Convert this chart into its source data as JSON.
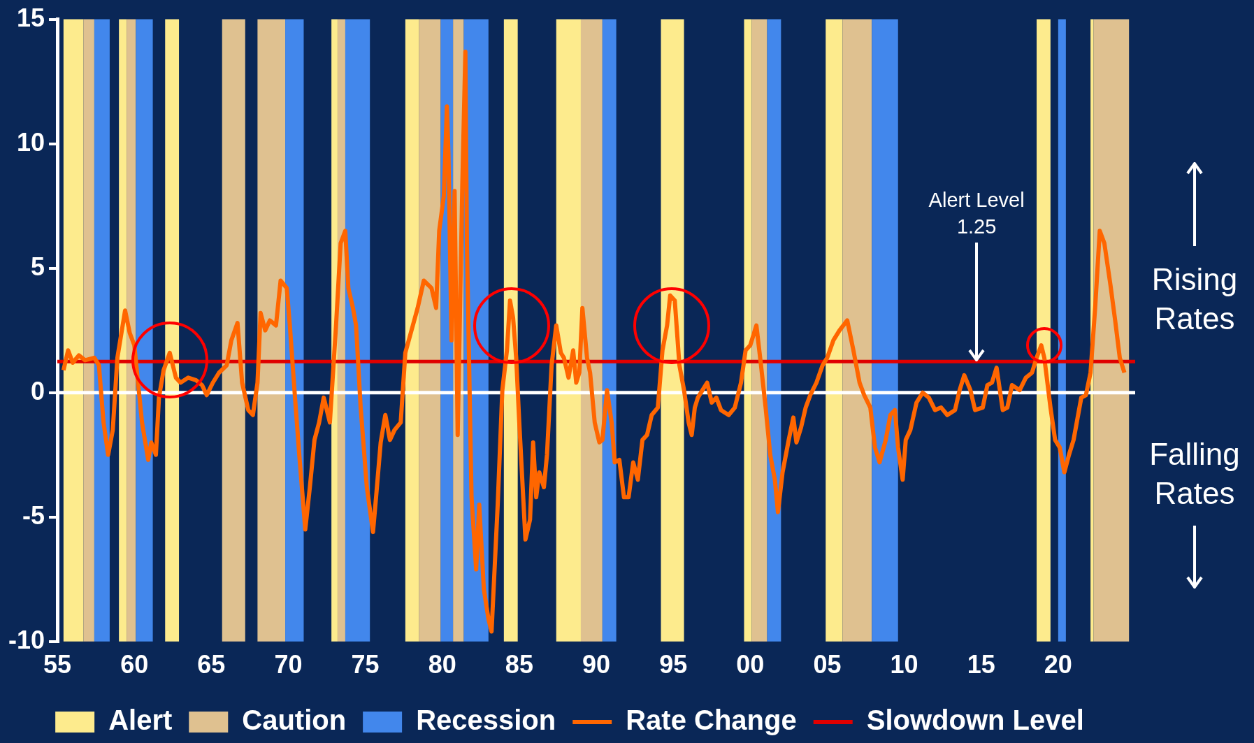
{
  "chart_data": {
    "type": "line",
    "xlim": [
      1955,
      2025
    ],
    "ylim": [
      -10,
      15
    ],
    "xticks": [
      {
        "value": 1955,
        "label": "55"
      },
      {
        "value": 1960,
        "label": "60"
      },
      {
        "value": 1965,
        "label": "65"
      },
      {
        "value": 1970,
        "label": "70"
      },
      {
        "value": 1975,
        "label": "75"
      },
      {
        "value": 1980,
        "label": "80"
      },
      {
        "value": 1985,
        "label": "85"
      },
      {
        "value": 1990,
        "label": "90"
      },
      {
        "value": 1995,
        "label": "95"
      },
      {
        "value": 2000,
        "label": "00"
      },
      {
        "value": 2005,
        "label": "05"
      },
      {
        "value": 2010,
        "label": "10"
      },
      {
        "value": 2015,
        "label": "15"
      },
      {
        "value": 2020,
        "label": "20"
      }
    ],
    "yticks": [
      -10,
      -5,
      0,
      5,
      10,
      15
    ],
    "legend": "bottom",
    "series": [
      {
        "name": "Rate Change",
        "color": "#ff6600",
        "x": [
          1955.4,
          1955.7,
          1956.0,
          1956.4,
          1956.8,
          1957.4,
          1957.7,
          1958.0,
          1958.3,
          1958.6,
          1958.9,
          1959.4,
          1959.7,
          1960.0,
          1960.5,
          1960.9,
          1961.1,
          1961.4,
          1961.6,
          1961.9,
          1962.3,
          1962.7,
          1963.0,
          1963.5,
          1964.0,
          1964.4,
          1964.7,
          1965.1,
          1965.5,
          1966.0,
          1966.3,
          1966.7,
          1967.0,
          1967.4,
          1967.7,
          1968.0,
          1968.2,
          1968.5,
          1968.8,
          1969.2,
          1969.5,
          1969.9,
          1970.1,
          1970.4,
          1970.7,
          1971.1,
          1971.4,
          1971.7,
          1972.0,
          1972.3,
          1972.7,
          1973.1,
          1973.4,
          1973.7,
          1973.9,
          1974.2,
          1974.4,
          1974.7,
          1975.1,
          1975.5,
          1975.7,
          1976.0,
          1976.3,
          1976.6,
          1976.9,
          1977.3,
          1977.6,
          1978.0,
          1978.4,
          1978.8,
          1979.3,
          1979.6,
          1979.8,
          1980.1,
          1980.3,
          1980.4,
          1980.6,
          1980.8,
          1981.0,
          1981.3,
          1981.5,
          1981.6,
          1981.9,
          1982.2,
          1982.4,
          1982.7,
          1983.0,
          1983.2,
          1983.6,
          1983.9,
          1984.2,
          1984.4,
          1984.6,
          1984.8,
          1985.0,
          1985.4,
          1985.7,
          1985.9,
          1986.1,
          1986.3,
          1986.6,
          1986.8,
          1987.1,
          1987.4,
          1987.7,
          1987.9,
          1988.2,
          1988.5,
          1988.7,
          1988.9,
          1989.1,
          1989.4,
          1989.6,
          1989.9,
          1990.2,
          1990.4,
          1990.7,
          1991.0,
          1991.2,
          1991.5,
          1991.8,
          1992.1,
          1992.4,
          1992.7,
          1993.0,
          1993.3,
          1993.6,
          1994.0,
          1994.3,
          1994.6,
          1994.8,
          1995.1,
          1995.4,
          1995.7,
          1996.0,
          1996.2,
          1996.4,
          1996.6,
          1996.9,
          1997.2,
          1997.5,
          1997.8,
          1998.1,
          1998.6,
          1999.0,
          1999.4,
          1999.7,
          2000.0,
          2000.4,
          2000.7,
          2001.0,
          2001.3,
          2001.6,
          2001.8,
          2002.1,
          2002.5,
          2002.8,
          2003.0,
          2003.3,
          2003.6,
          2003.9,
          2004.3,
          2004.7,
          2005.0,
          2005.4,
          2005.8,
          2006.3,
          2006.7,
          2007.1,
          2007.4,
          2007.8,
          2008.1,
          2008.4,
          2008.8,
          2009.1,
          2009.4,
          2009.6,
          2009.9,
          2010.1,
          2010.4,
          2010.8,
          2011.2,
          2011.6,
          2012.0,
          2012.4,
          2012.8,
          2013.3,
          2013.6,
          2013.9,
          2014.3,
          2014.6,
          2015.1,
          2015.4,
          2015.7,
          2016.0,
          2016.4,
          2016.7,
          2017.0,
          2017.5,
          2017.9,
          2018.3,
          2018.6,
          2018.9,
          2019.1,
          2019.5,
          2019.8,
          2020.1,
          2020.4,
          2020.7,
          2021.0,
          2021.5,
          2021.8,
          2022.1,
          2022.4,
          2022.7,
          2023.0,
          2023.4,
          2023.7,
          2024.0,
          2024.3
        ],
        "values": [
          0.9,
          1.7,
          1.2,
          1.5,
          1.3,
          1.4,
          1.1,
          -1.2,
          -2.5,
          -1.5,
          1.4,
          3.3,
          2.4,
          1.9,
          -1.2,
          -2.7,
          -2.0,
          -2.5,
          -0.2,
          0.9,
          1.6,
          0.6,
          0.4,
          0.6,
          0.5,
          0.3,
          -0.1,
          0.4,
          0.8,
          1.1,
          2.1,
          2.8,
          0.4,
          -0.7,
          -0.9,
          0.4,
          3.2,
          2.5,
          2.9,
          2.7,
          4.5,
          4.2,
          2.7,
          0.1,
          -2.4,
          -5.5,
          -3.8,
          -1.9,
          -1.2,
          -0.2,
          -1.2,
          2.7,
          6.0,
          6.5,
          4.2,
          3.4,
          2.7,
          -0.6,
          -3.8,
          -5.6,
          -4.2,
          -2.0,
          -0.9,
          -1.9,
          -1.5,
          -1.2,
          1.6,
          2.5,
          3.4,
          4.5,
          4.2,
          3.4,
          6.5,
          7.9,
          11.5,
          9.6,
          2.1,
          8.1,
          -1.7,
          8.3,
          13.7,
          6.0,
          -4.2,
          -7.1,
          -4.5,
          -7.9,
          -9.1,
          -9.6,
          -4.5,
          0.1,
          1.7,
          3.7,
          3.0,
          1.4,
          -1.2,
          -5.9,
          -5.1,
          -2.0,
          -4.2,
          -3.2,
          -3.8,
          -2.5,
          1.1,
          2.7,
          1.6,
          1.4,
          0.6,
          1.7,
          0.4,
          0.8,
          3.4,
          1.4,
          0.8,
          -1.2,
          -2.0,
          -1.9,
          0.1,
          -1.2,
          -2.8,
          -2.7,
          -4.2,
          -4.2,
          -2.8,
          -3.5,
          -1.9,
          -1.7,
          -0.9,
          -0.6,
          1.7,
          2.7,
          3.9,
          3.7,
          1.1,
          0.1,
          -1.2,
          -1.7,
          -0.6,
          -0.2,
          0.1,
          0.4,
          -0.4,
          -0.2,
          -0.7,
          -0.9,
          -0.6,
          0.4,
          1.7,
          1.9,
          2.7,
          1.1,
          -0.6,
          -2.5,
          -3.5,
          -4.8,
          -3.2,
          -1.9,
          -1.0,
          -2.0,
          -1.4,
          -0.6,
          -0.1,
          0.4,
          1.1,
          1.4,
          2.1,
          2.5,
          2.9,
          1.7,
          0.4,
          -0.1,
          -0.6,
          -2.2,
          -2.8,
          -1.9,
          -0.9,
          -0.7,
          -2.2,
          -3.5,
          -1.9,
          -1.5,
          -0.4,
          0,
          -0.2,
          -0.7,
          -0.6,
          -0.9,
          -0.7,
          0.1,
          0.7,
          0.1,
          -0.7,
          -0.6,
          0.3,
          0.4,
          1.0,
          -0.7,
          -0.6,
          0.3,
          0.1,
          0.6,
          0.8,
          1.4,
          1.9,
          1.4,
          -0.6,
          -1.9,
          -2.2,
          -3.2,
          -2.5,
          -1.9,
          -0.2,
          -0.1,
          0.8,
          3.4,
          6.5,
          6.0,
          4.3,
          2.9,
          1.4,
          0.8
        ]
      }
    ],
    "ref_lines": [
      {
        "axis": "y",
        "value": 0,
        "color": "#ffffff"
      },
      {
        "axis": "y",
        "value": 1.25,
        "label": "Slowdown Level",
        "color": "#e00000"
      }
    ],
    "bands": [
      {
        "axis": "x",
        "from": 1955.4,
        "to": 1956.7,
        "label": "Alert",
        "color": "#fdeb8d"
      },
      {
        "axis": "x",
        "from": 1956.7,
        "to": 1957.4,
        "label": "Caution",
        "color": "#dfc190"
      },
      {
        "axis": "x",
        "from": 1957.4,
        "to": 1958.4,
        "label": "Recession",
        "color": "#4287ec"
      },
      {
        "axis": "x",
        "from": 1959.0,
        "to": 1959.5,
        "color": "#fdeb8d"
      },
      {
        "axis": "x",
        "from": 1959.5,
        "to": 1960.1,
        "color": "#dfc190"
      },
      {
        "axis": "x",
        "from": 1960.1,
        "to": 1961.2,
        "color": "#4287ec"
      },
      {
        "axis": "x",
        "from": 1962.0,
        "to": 1962.9,
        "color": "#fdeb8d"
      },
      {
        "axis": "x",
        "from": 1965.7,
        "to": 1967.2,
        "color": "#dfc190"
      },
      {
        "axis": "x",
        "from": 1968.0,
        "to": 1969.8,
        "color": "#dfc190"
      },
      {
        "axis": "x",
        "from": 1969.8,
        "to": 1971.0,
        "color": "#4287ec"
      },
      {
        "axis": "x",
        "from": 1972.8,
        "to": 1973.2,
        "color": "#fdeb8d"
      },
      {
        "axis": "x",
        "from": 1973.2,
        "to": 1973.7,
        "color": "#dfc190"
      },
      {
        "axis": "x",
        "from": 1973.7,
        "to": 1975.3,
        "color": "#4287ec"
      },
      {
        "axis": "x",
        "from": 1977.6,
        "to": 1978.5,
        "color": "#fdeb8d"
      },
      {
        "axis": "x",
        "from": 1978.5,
        "to": 1979.9,
        "color": "#dfc190"
      },
      {
        "axis": "x",
        "from": 1979.9,
        "to": 1980.7,
        "color": "#4287ec"
      },
      {
        "axis": "x",
        "from": 1980.7,
        "to": 1981.4,
        "color": "#dfc190"
      },
      {
        "axis": "x",
        "from": 1981.4,
        "to": 1983.0,
        "color": "#4287ec"
      },
      {
        "axis": "x",
        "from": 1984.0,
        "to": 1984.9,
        "color": "#fdeb8d"
      },
      {
        "axis": "x",
        "from": 1987.4,
        "to": 1989.0,
        "color": "#fdeb8d"
      },
      {
        "axis": "x",
        "from": 1989.0,
        "to": 1990.4,
        "color": "#dfc190"
      },
      {
        "axis": "x",
        "from": 1990.4,
        "to": 1991.3,
        "color": "#4287ec"
      },
      {
        "axis": "x",
        "from": 1994.2,
        "to": 1995.7,
        "color": "#fdeb8d"
      },
      {
        "axis": "x",
        "from": 1999.6,
        "to": 2000.1,
        "color": "#fdeb8d"
      },
      {
        "axis": "x",
        "from": 2000.1,
        "to": 2001.1,
        "color": "#dfc190"
      },
      {
        "axis": "x",
        "from": 2001.1,
        "to": 2002.0,
        "color": "#4287ec"
      },
      {
        "axis": "x",
        "from": 2004.9,
        "to": 2006.0,
        "color": "#fdeb8d"
      },
      {
        "axis": "x",
        "from": 2006.0,
        "to": 2007.9,
        "color": "#dfc190"
      },
      {
        "axis": "x",
        "from": 2007.9,
        "to": 2009.6,
        "color": "#4287ec"
      },
      {
        "axis": "x",
        "from": 2018.6,
        "to": 2019.5,
        "color": "#fdeb8d"
      },
      {
        "axis": "x",
        "from": 2020.0,
        "to": 2020.5,
        "color": "#4287ec"
      },
      {
        "axis": "x",
        "from": 2022.1,
        "to": 2022.3,
        "color": "#fdeb8d"
      },
      {
        "axis": "x",
        "from": 2022.3,
        "to": 2024.6,
        "color": "#dfc190"
      }
    ],
    "annotations": [
      {
        "text": "Alert Level\n1.25",
        "x": 2014.7,
        "y": 1.25
      },
      "Rising Rates",
      "Falling Rates"
    ]
  }
}
